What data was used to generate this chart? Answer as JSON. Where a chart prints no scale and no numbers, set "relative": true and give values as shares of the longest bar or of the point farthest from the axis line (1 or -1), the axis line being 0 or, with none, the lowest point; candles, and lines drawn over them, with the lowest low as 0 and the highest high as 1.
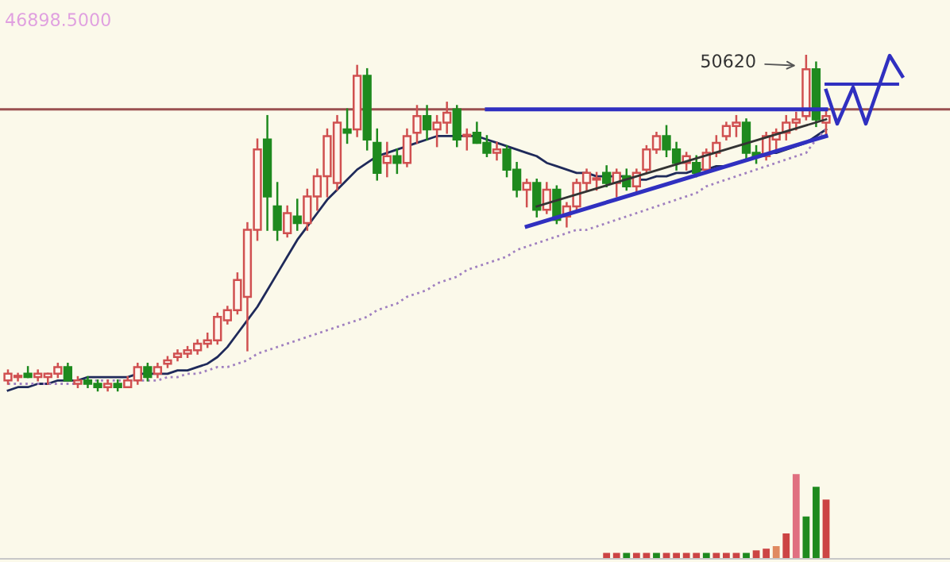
{
  "chart_data": [
    {
      "type": "candlestick",
      "relative": true,
      "categories": [
        null,
        null,
        null,
        null,
        null,
        null,
        null,
        null,
        null,
        null,
        null,
        null,
        null,
        null,
        null,
        null,
        null,
        null,
        null,
        null,
        null,
        null,
        null,
        null,
        null,
        null,
        null,
        null,
        null,
        null,
        null,
        null,
        null,
        null,
        null,
        null,
        null,
        null,
        null,
        null,
        null,
        null,
        null,
        null,
        null,
        null,
        null,
        null,
        null,
        null,
        null,
        null,
        null,
        null,
        null,
        null,
        null,
        null,
        null,
        null,
        null,
        null,
        null,
        null,
        null,
        null,
        null,
        null,
        null,
        null,
        null,
        null,
        null,
        null,
        null,
        null,
        null,
        null,
        null,
        null,
        null,
        null,
        null
      ],
      "ohlc": [
        [
          0.03,
          0.06,
          0.02,
          0.05
        ],
        [
          0.04,
          0.05,
          0.03,
          0.04
        ],
        [
          0.05,
          0.07,
          0.04,
          0.04
        ],
        [
          0.04,
          0.06,
          0.03,
          0.05
        ],
        [
          0.04,
          0.05,
          0.02,
          0.05
        ],
        [
          0.05,
          0.08,
          0.04,
          0.07
        ],
        [
          0.07,
          0.08,
          0.03,
          0.03
        ],
        [
          0.02,
          0.04,
          0.01,
          0.03
        ],
        [
          0.03,
          0.04,
          0.01,
          0.02
        ],
        [
          0.02,
          0.03,
          0.0,
          0.01
        ],
        [
          0.01,
          0.03,
          0.0,
          0.02
        ],
        [
          0.02,
          0.03,
          0.0,
          0.01
        ],
        [
          0.01,
          0.04,
          0.01,
          0.03
        ],
        [
          0.03,
          0.08,
          0.02,
          0.07
        ],
        [
          0.07,
          0.08,
          0.03,
          0.04
        ],
        [
          0.05,
          0.08,
          0.04,
          0.07
        ],
        [
          0.08,
          0.1,
          0.07,
          0.09
        ],
        [
          0.1,
          0.12,
          0.09,
          0.11
        ],
        [
          0.11,
          0.13,
          0.1,
          0.12
        ],
        [
          0.12,
          0.15,
          0.11,
          0.14
        ],
        [
          0.14,
          0.17,
          0.13,
          0.15
        ],
        [
          0.15,
          0.23,
          0.14,
          0.22
        ],
        [
          0.21,
          0.25,
          0.2,
          0.24
        ],
        [
          0.24,
          0.35,
          0.23,
          0.33
        ],
        [
          0.28,
          0.5,
          0.12,
          0.48
        ],
        [
          0.48,
          0.75,
          0.45,
          0.72
        ],
        [
          0.75,
          0.82,
          0.48,
          0.58
        ],
        [
          0.55,
          0.62,
          0.45,
          0.48
        ],
        [
          0.47,
          0.55,
          0.46,
          0.53
        ],
        [
          0.52,
          0.57,
          0.48,
          0.5
        ],
        [
          0.5,
          0.6,
          0.48,
          0.58
        ],
        [
          0.58,
          0.66,
          0.54,
          0.64
        ],
        [
          0.64,
          0.78,
          0.58,
          0.76
        ],
        [
          0.62,
          0.82,
          0.6,
          0.8
        ],
        [
          0.78,
          0.84,
          0.74,
          0.77
        ],
        [
          0.78,
          0.97,
          0.76,
          0.94
        ],
        [
          0.94,
          0.96,
          0.72,
          0.75
        ],
        [
          0.74,
          0.78,
          0.63,
          0.65
        ],
        [
          0.68,
          0.74,
          0.64,
          0.7
        ],
        [
          0.7,
          0.72,
          0.65,
          0.68
        ],
        [
          0.68,
          0.78,
          0.67,
          0.76
        ],
        [
          0.77,
          0.85,
          0.74,
          0.82
        ],
        [
          0.82,
          0.85,
          0.75,
          0.78
        ],
        [
          0.78,
          0.82,
          0.73,
          0.8
        ],
        [
          0.8,
          0.86,
          0.77,
          0.83
        ],
        [
          0.84,
          0.85,
          0.73,
          0.75
        ],
        [
          0.76,
          0.78,
          0.72,
          0.76
        ],
        [
          0.77,
          0.8,
          0.74,
          0.74
        ],
        [
          0.74,
          0.76,
          0.7,
          0.71
        ],
        [
          0.71,
          0.74,
          0.69,
          0.72
        ],
        [
          0.72,
          0.73,
          0.64,
          0.66
        ],
        [
          0.66,
          0.68,
          0.58,
          0.6
        ],
        [
          0.6,
          0.63,
          0.55,
          0.62
        ],
        [
          0.62,
          0.63,
          0.52,
          0.54
        ],
        [
          0.54,
          0.62,
          0.53,
          0.6
        ],
        [
          0.6,
          0.61,
          0.5,
          0.51
        ],
        [
          0.52,
          0.56,
          0.49,
          0.55
        ],
        [
          0.55,
          0.63,
          0.54,
          0.62
        ],
        [
          0.62,
          0.66,
          0.6,
          0.65
        ],
        [
          0.63,
          0.65,
          0.6,
          0.63
        ],
        [
          0.65,
          0.67,
          0.61,
          0.62
        ],
        [
          0.62,
          0.66,
          0.58,
          0.65
        ],
        [
          0.64,
          0.66,
          0.6,
          0.61
        ],
        [
          0.61,
          0.66,
          0.59,
          0.65
        ],
        [
          0.66,
          0.73,
          0.65,
          0.72
        ],
        [
          0.72,
          0.77,
          0.71,
          0.76
        ],
        [
          0.76,
          0.79,
          0.7,
          0.72
        ],
        [
          0.72,
          0.74,
          0.66,
          0.68
        ],
        [
          0.68,
          0.71,
          0.66,
          0.7
        ],
        [
          0.68,
          0.7,
          0.64,
          0.65
        ],
        [
          0.66,
          0.72,
          0.65,
          0.71
        ],
        [
          0.71,
          0.76,
          0.7,
          0.74
        ],
        [
          0.76,
          0.8,
          0.75,
          0.79
        ],
        [
          0.79,
          0.82,
          0.76,
          0.8
        ],
        [
          0.8,
          0.81,
          0.69,
          0.71
        ],
        [
          0.71,
          0.73,
          0.68,
          0.7
        ],
        [
          0.7,
          0.77,
          0.69,
          0.76
        ],
        [
          0.75,
          0.78,
          0.72,
          0.77
        ],
        [
          0.77,
          0.82,
          0.75,
          0.8
        ],
        [
          0.8,
          0.83,
          0.78,
          0.81
        ],
        [
          0.82,
          1.0,
          0.81,
          0.96
        ],
        [
          0.96,
          0.98,
          0.79,
          0.81
        ],
        [
          0.8,
          0.84,
          0.76,
          0.82
        ]
      ],
      "series": [
        {
          "type": "line",
          "color": "#1f2a5a",
          "line_style": "solid",
          "values": [
            0.0,
            0.01,
            0.01,
            0.02,
            0.02,
            0.03,
            0.03,
            0.03,
            0.04,
            0.04,
            0.04,
            0.04,
            0.04,
            0.05,
            0.05,
            0.05,
            0.05,
            0.06,
            0.06,
            0.07,
            0.08,
            0.1,
            0.13,
            0.17,
            0.21,
            0.25,
            0.3,
            0.35,
            0.4,
            0.45,
            0.49,
            0.53,
            0.57,
            0.6,
            0.63,
            0.66,
            0.68,
            0.7,
            0.71,
            0.72,
            0.73,
            0.74,
            0.75,
            0.76,
            0.76,
            0.76,
            0.76,
            0.76,
            0.75,
            0.74,
            0.73,
            0.72,
            0.71,
            0.7,
            0.68,
            0.67,
            0.66,
            0.65,
            0.65,
            0.64,
            0.64,
            0.64,
            0.64,
            0.63,
            0.63,
            0.64,
            0.64,
            0.65,
            0.65,
            0.66,
            0.66,
            0.67,
            0.67,
            0.68,
            0.69,
            0.7,
            0.71,
            0.71,
            0.72,
            0.73,
            0.74,
            0.76,
            0.78
          ]
        },
        {
          "type": "line",
          "color": "#a080c0",
          "line_style": "dotted",
          "values": [
            0.02,
            0.02,
            0.02,
            0.02,
            0.02,
            0.02,
            0.02,
            0.02,
            0.03,
            0.03,
            0.03,
            0.03,
            0.03,
            0.03,
            0.03,
            0.03,
            0.04,
            0.04,
            0.05,
            0.05,
            0.06,
            0.07,
            0.07,
            0.08,
            0.09,
            0.11,
            0.12,
            0.13,
            0.14,
            0.15,
            0.16,
            0.17,
            0.18,
            0.19,
            0.2,
            0.21,
            0.22,
            0.24,
            0.25,
            0.26,
            0.28,
            0.29,
            0.3,
            0.32,
            0.33,
            0.34,
            0.36,
            0.37,
            0.38,
            0.39,
            0.4,
            0.42,
            0.43,
            0.44,
            0.45,
            0.46,
            0.47,
            0.48,
            0.48,
            0.49,
            0.5,
            0.51,
            0.52,
            0.53,
            0.54,
            0.55,
            0.56,
            0.57,
            0.58,
            0.59,
            0.61,
            0.62,
            0.63,
            0.64,
            0.65,
            0.66,
            0.67,
            0.68,
            0.69,
            0.7,
            0.71,
            0.75,
            0.78
          ]
        },
        {
          "type": "line",
          "color": "#3030c0",
          "line_style": "solid",
          "values": [
            null,
            null,
            null,
            null,
            null,
            null,
            null,
            null,
            null,
            null,
            null,
            null,
            null,
            null,
            null,
            null,
            null,
            null,
            null,
            null,
            null,
            null,
            null,
            null,
            null,
            null,
            null,
            null,
            null,
            null,
            null,
            null,
            null,
            null,
            null,
            null,
            null,
            null,
            null,
            null,
            null,
            null,
            null,
            null,
            null,
            null,
            null,
            null,
            null,
            null,
            null,
            null,
            0.49,
            null,
            null,
            null,
            null,
            null,
            null,
            null,
            null,
            null,
            null,
            null,
            null,
            null,
            null,
            null,
            null,
            null,
            null,
            null,
            null,
            null,
            null,
            null,
            null,
            null,
            null,
            null,
            null,
            null,
            0.76
          ]
        },
        {
          "type": "line",
          "color": "#3030c0",
          "line_style": "solid",
          "values": [
            null,
            null,
            null,
            null,
            null,
            null,
            null,
            null,
            null,
            null,
            null,
            null,
            null,
            null,
            null,
            null,
            null,
            null,
            null,
            null,
            null,
            null,
            null,
            null,
            null,
            null,
            null,
            null,
            null,
            null,
            null,
            null,
            null,
            null,
            null,
            null,
            null,
            null,
            null,
            null,
            null,
            null,
            null,
            null,
            null,
            null,
            null,
            null,
            0.84,
            null,
            null,
            null,
            null,
            null,
            null,
            null,
            null,
            null,
            null,
            null,
            null,
            null,
            null,
            null,
            null,
            null,
            null,
            null,
            null,
            null,
            null,
            null,
            null,
            null,
            null,
            null,
            null,
            null,
            null,
            null,
            null,
            null,
            0.84
          ]
        },
        {
          "type": "line",
          "color": "#333333",
          "line_style": "solid",
          "values": [
            null,
            null,
            null,
            null,
            null,
            null,
            null,
            null,
            null,
            null,
            null,
            null,
            null,
            null,
            null,
            null,
            null,
            null,
            null,
            null,
            null,
            null,
            null,
            null,
            null,
            null,
            null,
            null,
            null,
            null,
            null,
            null,
            null,
            null,
            null,
            null,
            null,
            null,
            null,
            null,
            null,
            null,
            null,
            null,
            null,
            null,
            null,
            null,
            null,
            null,
            null,
            null,
            null,
            0.55,
            null,
            null,
            null,
            null,
            null,
            null,
            null,
            null,
            null,
            null,
            null,
            null,
            null,
            null,
            null,
            null,
            null,
            null,
            null,
            null,
            null,
            null,
            null,
            null,
            null,
            null,
            null,
            null,
            0.81
          ]
        }
      ],
      "ref_lines": [
        {
          "axis": "y",
          "value": 0.84,
          "color": "#9a5050",
          "line_style": "solid"
        }
      ],
      "annotations": [
        "46898.5000",
        "50620"
      ]
    },
    {
      "type": "bar",
      "relative": true,
      "categories": [
        null,
        null,
        null,
        null,
        null,
        null,
        null,
        null,
        null,
        null,
        null,
        null,
        null,
        null,
        null,
        null,
        null,
        null,
        null,
        null,
        null,
        null,
        null
      ],
      "values": [
        0.07,
        0.07,
        0.07,
        0.07,
        0.07,
        0.07,
        0.07,
        0.07,
        0.07,
        0.07,
        0.07,
        0.07,
        0.07,
        0.07,
        0.07,
        0.1,
        0.12,
        0.15,
        0.3,
        1.0,
        0.5,
        0.85,
        0.7
      ],
      "colors": [
        "#cc4444",
        "#cc4444",
        "#1e8a1e",
        "#cc4444",
        "#cc4444",
        "#1e8a1e",
        "#cc4444",
        "#cc4444",
        "#cc4444",
        "#cc4444",
        "#1e8a1e",
        "#cc4444",
        "#cc4444",
        "#cc4444",
        "#1e8a1e",
        "#cc4444",
        "#cc4444",
        "#e08a60",
        "#cc4444",
        "#e07080",
        "#1e8a1e",
        "#1e8a1e",
        "#cc4444"
      ]
    }
  ]
}
